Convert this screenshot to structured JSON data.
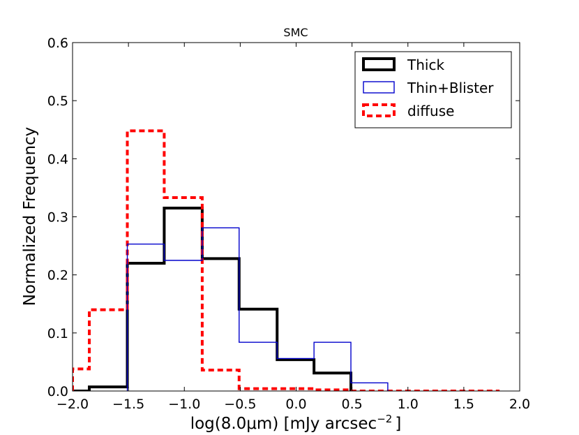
{
  "chart_data": {
    "type": "histogram-step",
    "title": "SMC",
    "xlabel": "log(8.0μm) [mJy arcsec",
    "xlabel_suffix": "]",
    "xlabel_exponent": "−2",
    "ylabel": "Normalized Frequency",
    "xlim": [
      -2.0,
      2.0
    ],
    "ylim": [
      0.0,
      0.6
    ],
    "xticks": [
      -2.0,
      -1.5,
      -1.0,
      -0.5,
      0.0,
      0.5,
      1.0,
      1.5,
      2.0
    ],
    "xtick_labels": [
      "−2.0",
      "−1.5",
      "−1.0",
      "−0.5",
      "0.0",
      "0.5",
      "1.0",
      "1.5",
      "2.0"
    ],
    "yticks": [
      0.0,
      0.1,
      0.2,
      0.3,
      0.4,
      0.5,
      0.6
    ],
    "ytick_labels": [
      "0.0",
      "0.1",
      "0.2",
      "0.3",
      "0.4",
      "0.5",
      "0.6"
    ],
    "legend_position": "top-right",
    "series": [
      {
        "name": "Thick",
        "color": "#000000",
        "style": "solid-thick",
        "edges": [
          -2.0,
          -1.85,
          -1.51,
          -1.18,
          -0.84,
          -0.51,
          -0.17,
          0.16,
          0.49
        ],
        "values": [
          0.0,
          0.007,
          0.22,
          0.315,
          0.228,
          0.141,
          0.054,
          0.031
        ]
      },
      {
        "name": "Thin+Blister",
        "color": "#0000cc",
        "style": "solid-thin",
        "edges": [
          -1.51,
          -1.18,
          -0.84,
          -0.51,
          -0.17,
          0.16,
          0.49,
          0.82
        ],
        "values": [
          0.253,
          0.225,
          0.281,
          0.084,
          0.056,
          0.084,
          0.014
        ]
      },
      {
        "name": "diffuse",
        "color": "#ff0000",
        "style": "dashed-thick",
        "edges": [
          -2.0,
          -1.85,
          -1.51,
          -1.18,
          -0.84,
          -0.51,
          -0.17,
          0.16,
          0.49,
          0.82,
          1.16,
          1.49,
          1.82
        ],
        "values": [
          0.038,
          0.14,
          0.448,
          0.333,
          0.036,
          0.004,
          0.004,
          0.002,
          0.0,
          0.0,
          0.0,
          0.0
        ]
      }
    ]
  }
}
